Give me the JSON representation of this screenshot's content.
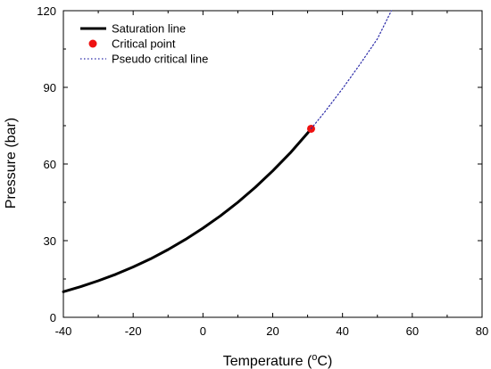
{
  "chart_data": {
    "type": "line",
    "xlabel": "Temperature (",
    "xlabel_sup": "o",
    "xlabel_tail": "C)",
    "ylabel": "Pressure (bar)",
    "xlim": [
      -40,
      80
    ],
    "ylim": [
      0,
      120
    ],
    "xticks": [
      -40,
      -20,
      0,
      20,
      40,
      60,
      80
    ],
    "yticks": [
      0,
      30,
      60,
      90,
      120
    ],
    "grid": false,
    "legend_position": "top-left",
    "series": [
      {
        "name": "Saturation line",
        "style": "solid",
        "color": "#000000",
        "x": [
          -40,
          -35,
          -30,
          -25,
          -20,
          -15,
          -10,
          -5,
          0,
          5,
          10,
          15,
          20,
          25,
          30,
          31
        ],
        "y": [
          10.0,
          12.0,
          14.3,
          16.8,
          19.7,
          22.9,
          26.5,
          30.5,
          34.9,
          39.7,
          45.0,
          50.9,
          57.3,
          64.3,
          72.1,
          73.8
        ]
      },
      {
        "name": "Critical point",
        "style": "marker",
        "color": "#ee1111",
        "x": [
          31
        ],
        "y": [
          73.8
        ]
      },
      {
        "name": "Pseudo critical line",
        "style": "dotted",
        "color": "#2a2aa8",
        "x": [
          31,
          35,
          40,
          45,
          50,
          54
        ],
        "y": [
          73.8,
          80.5,
          89.5,
          99.0,
          109.0,
          120.0
        ]
      }
    ]
  }
}
